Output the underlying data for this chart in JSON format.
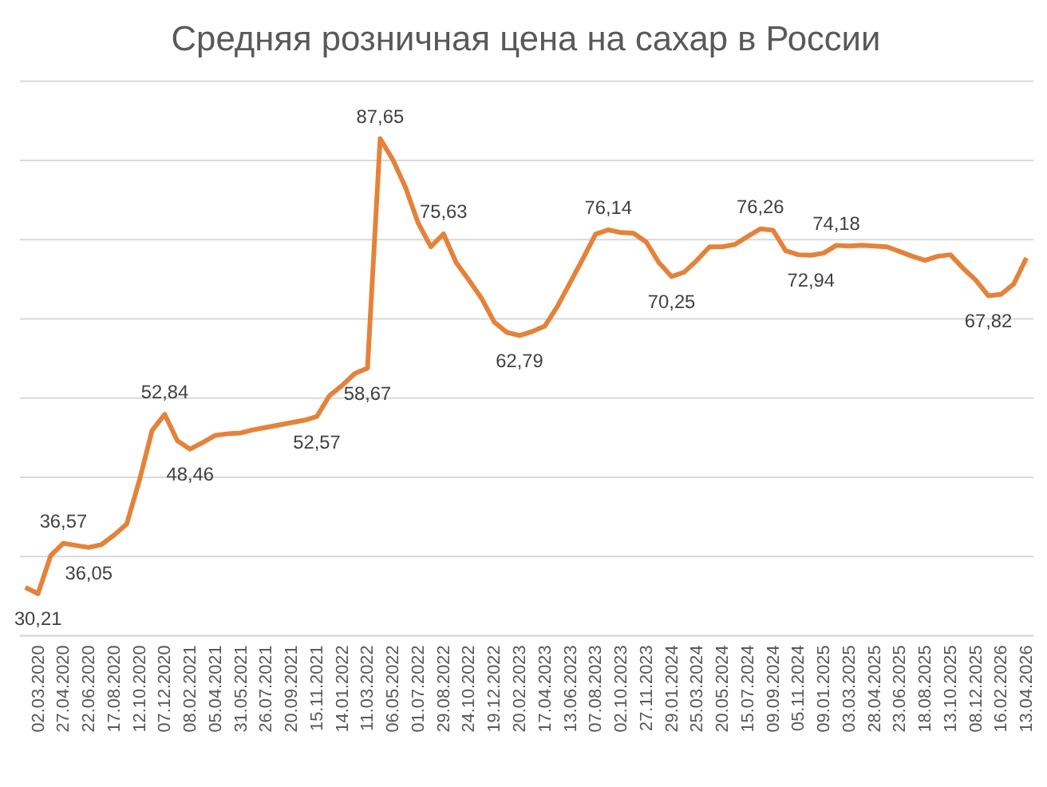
{
  "chart_data": {
    "type": "line",
    "title": "Средняя розничная цена на сахар в России",
    "categories": [
      null,
      "02.03.2020",
      null,
      "27.04.2020",
      null,
      "22.06.2020",
      null,
      "17.08.2020",
      null,
      "12.10.2020",
      null,
      "07.12.2020",
      null,
      "08.02.2021",
      null,
      "05.04.2021",
      null,
      "31.05.2021",
      null,
      "26.07.2021",
      null,
      "20.09.2021",
      null,
      "15.11.2021",
      null,
      "14.01.2022",
      null,
      "11.03.2022",
      null,
      "06.05.2022",
      null,
      "01.07.2022",
      null,
      "29.08.2022",
      null,
      "24.10.2022",
      null,
      "19.12.2022",
      null,
      "20.02.2023",
      null,
      "17.04.2023",
      null,
      "13.06.2023",
      null,
      "07.08.2023",
      null,
      "02.10.2023",
      null,
      "27.11.2023",
      null,
      "29.01.2024",
      null,
      "25.03.2024",
      null,
      "20.05.2024",
      null,
      "15.07.2024",
      null,
      "09.09.2024",
      null,
      "05.11.2024",
      null,
      "09.01.2025",
      null,
      "03.03.2025",
      null,
      "28.04.2025",
      null,
      "23.06.2025",
      null,
      "18.08.2025",
      null,
      "13.10.2025",
      null,
      "08.12.2025",
      null,
      "16.02.2026",
      null,
      "13.04.2026"
    ],
    "series": [
      {
        "color": "#e5823a",
        "values": [
          31.0,
          30.21,
          35.0,
          36.57,
          36.3,
          36.05,
          36.4,
          37.6,
          39.0,
          44.5,
          50.8,
          52.84,
          49.5,
          48.46,
          49.3,
          50.2,
          50.4,
          50.5,
          50.9,
          51.2,
          51.5,
          51.8,
          52.1,
          52.57,
          55.2,
          56.5,
          58.0,
          58.67,
          87.65,
          85.0,
          81.5,
          77.0,
          74.0,
          75.63,
          72.0,
          69.8,
          67.5,
          64.5,
          63.2,
          62.79,
          63.3,
          64.0,
          66.5,
          69.5,
          72.5,
          75.6,
          76.14,
          75.8,
          75.7,
          74.6,
          72.0,
          70.25,
          70.8,
          72.3,
          74.0,
          74.0,
          74.3,
          75.3,
          76.26,
          76.1,
          73.5,
          73.0,
          72.94,
          73.2,
          74.18,
          74.1,
          74.2,
          74.1,
          74.0,
          73.4,
          72.8,
          72.3,
          72.8,
          73.0,
          71.3,
          69.8,
          67.82,
          68.0,
          69.3,
          72.6
        ],
        "value_labels": [
          null,
          "30,21",
          null,
          "36,57",
          null,
          "36,05",
          null,
          null,
          null,
          null,
          null,
          "52,84",
          null,
          "48,46",
          null,
          null,
          null,
          null,
          null,
          null,
          null,
          null,
          null,
          "52,57",
          null,
          null,
          null,
          "58,67",
          "87,65",
          null,
          null,
          null,
          null,
          "75,63",
          null,
          null,
          null,
          null,
          null,
          "62,79",
          null,
          null,
          null,
          null,
          null,
          null,
          "76,14",
          null,
          null,
          null,
          null,
          "70,25",
          null,
          null,
          null,
          null,
          null,
          null,
          "76,26",
          null,
          null,
          null,
          "72,94",
          null,
          "74,18",
          null,
          null,
          null,
          null,
          null,
          null,
          null,
          null,
          null,
          null,
          null,
          "67,82",
          null,
          null,
          null
        ]
      }
    ],
    "ylim": [
      25,
      95
    ],
    "yticks": [
      {
        "value": 25,
        "label": null
      },
      {
        "value": 35,
        "label": null
      },
      {
        "value": 45,
        "label": null
      },
      {
        "value": 55,
        "label": null
      },
      {
        "value": 65,
        "label": null
      },
      {
        "value": 75,
        "label": null
      },
      {
        "value": 85,
        "label": null
      },
      {
        "value": 95,
        "label": null
      }
    ],
    "tick_labels": "x",
    "grid": "y",
    "marker": "none",
    "line_style": "solid"
  }
}
